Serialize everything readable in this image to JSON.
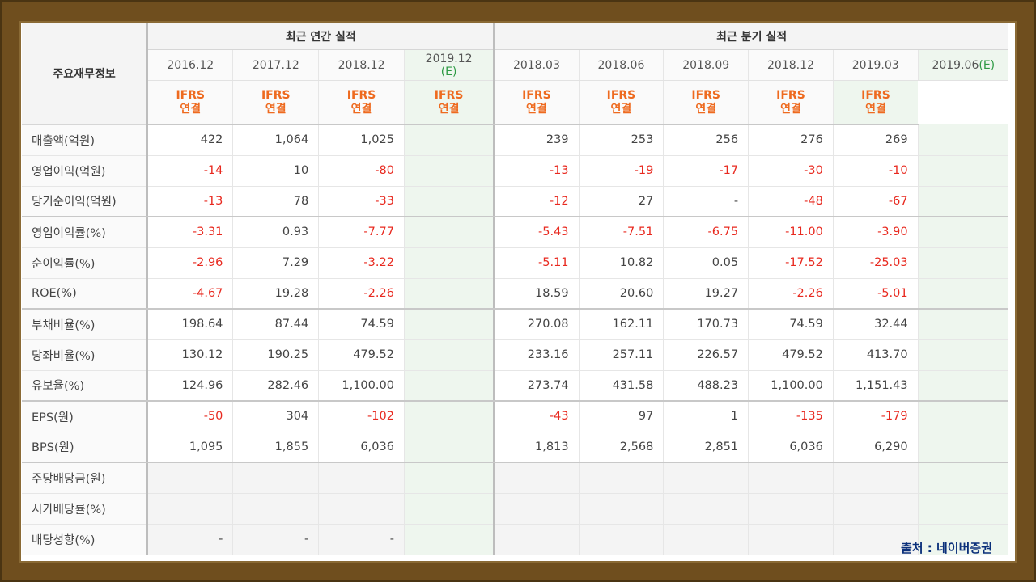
{
  "title": "주요재무정보",
  "group_annual": "최근 연간 실적",
  "group_quarterly": "최근 분기 실적",
  "annual_periods": [
    "2016.12",
    "2017.12",
    "2018.12"
  ],
  "annual_est": {
    "date": "2019.12",
    "tag": "(E)"
  },
  "quarter_periods": [
    "2018.03",
    "2018.06",
    "2018.09",
    "2018.12",
    "2019.03"
  ],
  "quarter_est": {
    "date": "2019.06",
    "tag": "(E)"
  },
  "basis": {
    "line1": "IFRS",
    "line2": "연결"
  },
  "rows": [
    {
      "label": "매출액(억원)",
      "annual": [
        "422",
        "1,064",
        "1,025"
      ],
      "quarterly": [
        "239",
        "253",
        "256",
        "276",
        "269"
      ]
    },
    {
      "label": "영업이익(억원)",
      "annual": [
        "-14",
        "10",
        "-80"
      ],
      "quarterly": [
        "-13",
        "-19",
        "-17",
        "-30",
        "-10"
      ]
    },
    {
      "label": "당기순이익(억원)",
      "annual": [
        "-13",
        "78",
        "-33"
      ],
      "quarterly": [
        "-12",
        "27",
        "-",
        "-48",
        "-67"
      ]
    },
    {
      "label": "영업이익률(%)",
      "annual": [
        "-3.31",
        "0.93",
        "-7.77"
      ],
      "quarterly": [
        "-5.43",
        "-7.51",
        "-6.75",
        "-11.00",
        "-3.90"
      ]
    },
    {
      "label": "순이익률(%)",
      "annual": [
        "-2.96",
        "7.29",
        "-3.22"
      ],
      "quarterly": [
        "-5.11",
        "10.82",
        "0.05",
        "-17.52",
        "-25.03"
      ]
    },
    {
      "label": "ROE(%)",
      "annual": [
        "-4.67",
        "19.28",
        "-2.26"
      ],
      "quarterly": [
        "18.59",
        "20.60",
        "19.27",
        "-2.26",
        "-5.01"
      ]
    },
    {
      "label": "부채비율(%)",
      "annual": [
        "198.64",
        "87.44",
        "74.59"
      ],
      "quarterly": [
        "270.08",
        "162.11",
        "170.73",
        "74.59",
        "32.44"
      ]
    },
    {
      "label": "당좌비율(%)",
      "annual": [
        "130.12",
        "190.25",
        "479.52"
      ],
      "quarterly": [
        "233.16",
        "257.11",
        "226.57",
        "479.52",
        "413.70"
      ]
    },
    {
      "label": "유보율(%)",
      "annual": [
        "124.96",
        "282.46",
        "1,100.00"
      ],
      "quarterly": [
        "273.74",
        "431.58",
        "488.23",
        "1,100.00",
        "1,151.43"
      ]
    },
    {
      "label": "EPS(원)",
      "annual": [
        "-50",
        "304",
        "-102"
      ],
      "quarterly": [
        "-43",
        "97",
        "1",
        "-135",
        "-179"
      ]
    },
    {
      "label": "BPS(원)",
      "annual": [
        "1,095",
        "1,855",
        "6,036"
      ],
      "quarterly": [
        "1,813",
        "2,568",
        "2,851",
        "6,036",
        "6,290"
      ]
    },
    {
      "label": "주당배당금(원)",
      "annual": [
        "",
        "",
        ""
      ],
      "quarterly": [
        "",
        "",
        "",
        "",
        ""
      ]
    },
    {
      "label": "시가배당률(%)",
      "annual": [
        "",
        "",
        ""
      ],
      "quarterly": [
        "",
        "",
        "",
        "",
        ""
      ]
    },
    {
      "label": "배당성향(%)",
      "annual": [
        "-",
        "-",
        "-"
      ],
      "quarterly": [
        "",
        "",
        "",
        "",
        ""
      ]
    }
  ],
  "source": "출처 : 네이버증권"
}
